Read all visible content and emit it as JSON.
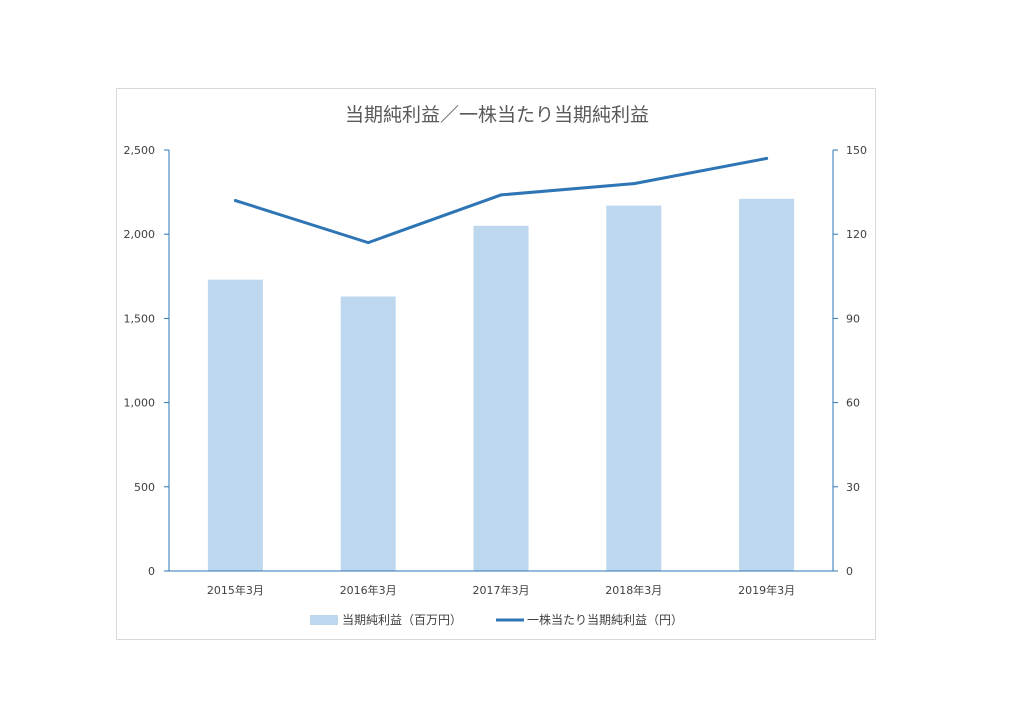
{
  "chart_data": {
    "type": "bar",
    "title": "当期純利益／一株当たり当期純利益",
    "categories": [
      "2015年3月",
      "2016年3月",
      "2017年3月",
      "2018年3月",
      "2019年3月"
    ],
    "series": [
      {
        "name": "当期純利益（百万円）",
        "type": "bar",
        "axis": "left",
        "color": "#BDD7EE",
        "values": [
          1730,
          1630,
          2050,
          2170,
          2210
        ]
      },
      {
        "name": "一株当たり当期純利益（円）",
        "type": "line",
        "axis": "right",
        "color": "#2E75B6",
        "values": [
          132,
          117,
          134,
          138,
          147
        ]
      }
    ],
    "y_left": {
      "ylim": [
        0,
        2500
      ],
      "ticks": [
        "0",
        "500",
        "1,000",
        "1,500",
        "2,000",
        "2,500"
      ]
    },
    "y_right": {
      "ylim": [
        0,
        150
      ],
      "ticks": [
        "0",
        "30",
        "60",
        "90",
        "120",
        "150"
      ]
    },
    "grid": false,
    "legend_position": "bottom"
  }
}
